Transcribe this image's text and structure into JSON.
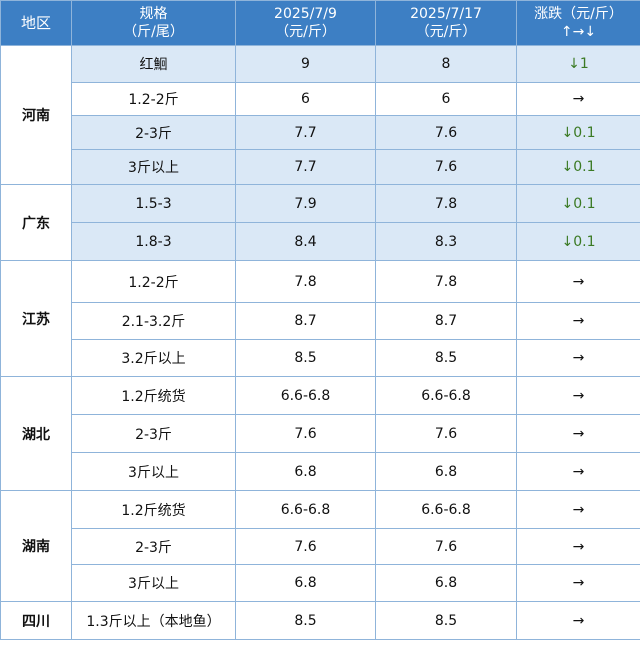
{
  "header": {
    "region": "地区",
    "spec_line1": "规格",
    "spec_line2": "（斤/尾）",
    "date1_line1": "2025/7/9",
    "date1_line2": "（元/斤）",
    "date2_line1": "2025/7/17",
    "date2_line2": "（元/斤）",
    "change_line1": "涨跌（元/斤）",
    "change_line2": "↑→↓"
  },
  "regions": [
    {
      "name": "河南",
      "rows": [
        {
          "spec": "红鮰",
          "price_0709": "9",
          "price_0717": "8",
          "change": "↓1",
          "direction": "down",
          "highlight": true
        },
        {
          "spec": "1.2-2斤",
          "price_0709": "6",
          "price_0717": "6",
          "change": "→",
          "direction": "flat",
          "highlight": false
        },
        {
          "spec": "2-3斤",
          "price_0709": "7.7",
          "price_0717": "7.6",
          "change": "↓0.1",
          "direction": "down",
          "highlight": true
        },
        {
          "spec": "3斤以上",
          "price_0709": "7.7",
          "price_0717": "7.6",
          "change": "↓0.1",
          "direction": "down",
          "highlight": true
        }
      ]
    },
    {
      "name": "广东",
      "rows": [
        {
          "spec": "1.5-3",
          "price_0709": "7.9",
          "price_0717": "7.8",
          "change": "↓0.1",
          "direction": "down",
          "highlight": true
        },
        {
          "spec": "1.8-3",
          "price_0709": "8.4",
          "price_0717": "8.3",
          "change": "↓0.1",
          "direction": "down",
          "highlight": true
        }
      ]
    },
    {
      "name": "江苏",
      "rows": [
        {
          "spec": "1.2-2斤",
          "price_0709": "7.8",
          "price_0717": "7.8",
          "change": "→",
          "direction": "flat",
          "highlight": false
        },
        {
          "spec": "2.1-3.2斤",
          "price_0709": "8.7",
          "price_0717": "8.7",
          "change": "→",
          "direction": "flat",
          "highlight": false
        },
        {
          "spec": "3.2斤以上",
          "price_0709": "8.5",
          "price_0717": "8.5",
          "change": "→",
          "direction": "flat",
          "highlight": false
        }
      ]
    },
    {
      "name": "湖北",
      "rows": [
        {
          "spec": "1.2斤统货",
          "price_0709": "6.6-6.8",
          "price_0717": "6.6-6.8",
          "change": "→",
          "direction": "flat",
          "highlight": false
        },
        {
          "spec": "2-3斤",
          "price_0709": "7.6",
          "price_0717": "7.6",
          "change": "→",
          "direction": "flat",
          "highlight": false
        },
        {
          "spec": "3斤以上",
          "price_0709": "6.8",
          "price_0717": "6.8",
          "change": "→",
          "direction": "flat",
          "highlight": false
        }
      ]
    },
    {
      "name": "湖南",
      "rows": [
        {
          "spec": "1.2斤统货",
          "price_0709": "6.6-6.8",
          "price_0717": "6.6-6.8",
          "change": "→",
          "direction": "flat",
          "highlight": false
        },
        {
          "spec": "2-3斤",
          "price_0709": "7.6",
          "price_0717": "7.6",
          "change": "→",
          "direction": "flat",
          "highlight": false
        },
        {
          "spec": "3斤以上",
          "price_0709": "6.8",
          "price_0717": "6.8",
          "change": "→",
          "direction": "flat",
          "highlight": false
        }
      ]
    },
    {
      "name": "四川",
      "rows": [
        {
          "spec": "1.3斤以上（本地鱼）",
          "price_0709": "8.5",
          "price_0717": "8.5",
          "change": "→",
          "direction": "flat",
          "highlight": false
        }
      ]
    }
  ],
  "colors": {
    "header_bg": "#3d7fc4",
    "band_bg": "#dae8f6",
    "grid_line": "#8fb4da",
    "down_color": "#3b7a24"
  }
}
